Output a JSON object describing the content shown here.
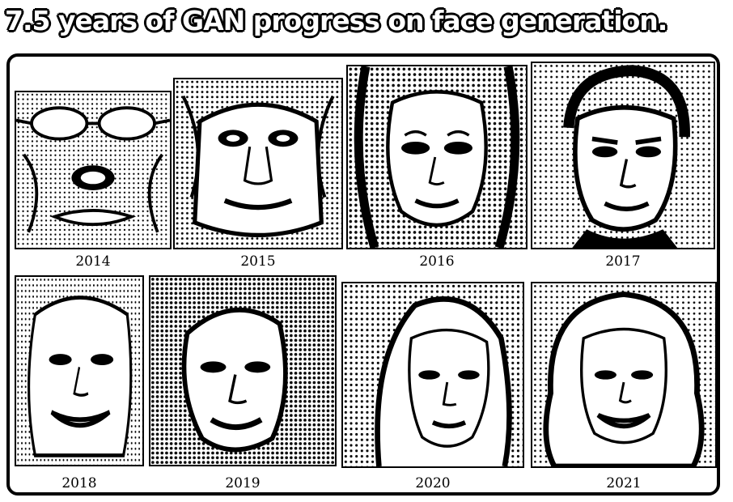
{
  "title": "7.5 years of GAN progress on face generation.",
  "faces": [
    {
      "year": "2014"
    },
    {
      "year": "2015"
    },
    {
      "year": "2016"
    },
    {
      "year": "2017"
    },
    {
      "year": "2018"
    },
    {
      "year": "2019"
    },
    {
      "year": "2020"
    },
    {
      "year": "2021"
    }
  ]
}
